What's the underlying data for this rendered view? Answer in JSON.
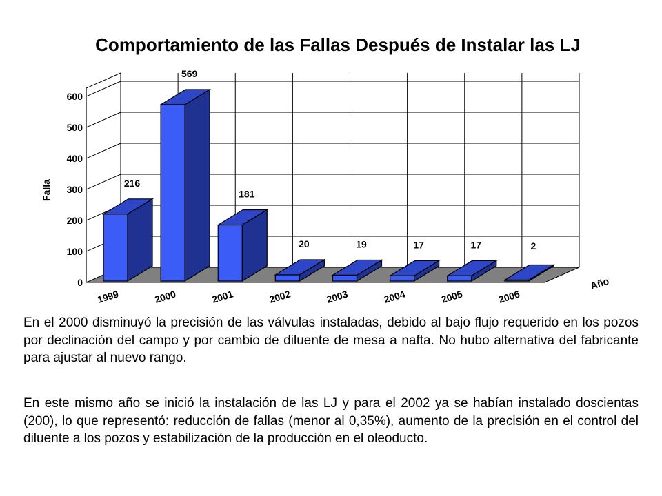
{
  "chart_data": {
    "type": "bar",
    "title": "Comportamiento de las Fallas Después de Instalar las LJ",
    "xlabel": "Año",
    "ylabel": "Falla",
    "categories": [
      "1999",
      "2000",
      "2001",
      "2002",
      "2003",
      "2004",
      "2005",
      "2006"
    ],
    "values": [
      216,
      569,
      181,
      20,
      19,
      17,
      17,
      2
    ],
    "data_labels": [
      "216",
      "569",
      "181",
      "20",
      "19",
      "17",
      "17",
      "2"
    ],
    "yticks": [
      "0",
      "100",
      "200",
      "300",
      "400",
      "500",
      "600"
    ],
    "ylim": [
      0,
      600
    ],
    "grid": true,
    "colors": {
      "bar_front": "#3b5cf6",
      "bar_side": "#1f3191",
      "bar_top": "#2d47c8",
      "floor": "#808080"
    }
  },
  "text": {
    "paragraph1": "En el 2000 disminuyó la precisión de las válvulas instaladas, debido al bajo flujo requerido en los pozos por declinación del campo y por cambio de diluente de mesa a nafta. No hubo alternativa del fabricante para ajustar al nuevo rango.",
    "paragraph2": "En este mismo año se inició la instalación de las LJ y para el 2002 ya se habían instalado doscientas (200), lo que representó: reducción de fallas (menor al 0,35%), aumento de la precisión en el control del diluente a los pozos y estabilización de la producción en el oleoducto."
  }
}
